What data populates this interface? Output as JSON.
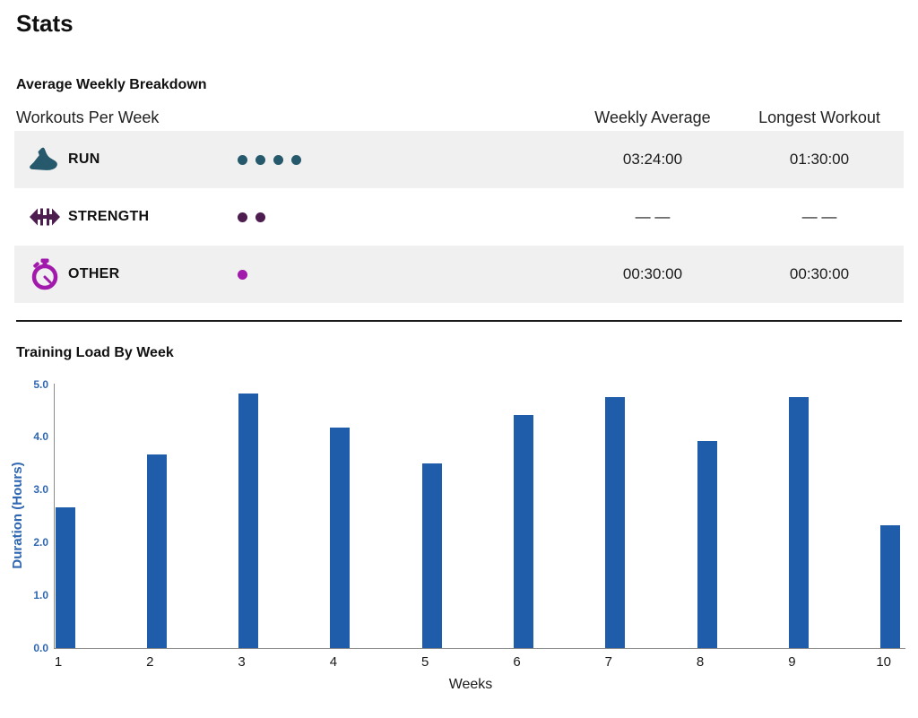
{
  "page": {
    "title": "Stats"
  },
  "breakdown": {
    "heading": "Average Weekly Breakdown",
    "table": {
      "col1_header": "Workouts Per Week",
      "col2_header": "Weekly Average",
      "col3_header": "Longest Workout",
      "rows": [
        {
          "icon": "run-shoe-icon",
          "label": "RUN",
          "workouts_per_week_dots": 4,
          "color": "#26596c",
          "weekly_average": "03:24:00",
          "longest_workout": "01:30:00"
        },
        {
          "icon": "dumbbell-icon",
          "label": "STRENGTH",
          "workouts_per_week_dots": 2,
          "color": "#4d1d50",
          "weekly_average": "— —",
          "longest_workout": "— —"
        },
        {
          "icon": "stopwatch-icon",
          "label": "OTHER",
          "workouts_per_week_dots": 1,
          "color": "#a21aab",
          "weekly_average": "00:30:00",
          "longest_workout": "00:30:00"
        }
      ]
    }
  },
  "training_load": {
    "heading": "Training Load By Week"
  },
  "chart_data": {
    "type": "bar",
    "title": "Training Load By Week",
    "categories": [
      "1",
      "2",
      "3",
      "4",
      "5",
      "6",
      "7",
      "8",
      "9",
      "10"
    ],
    "values": [
      2.67,
      3.67,
      4.83,
      4.17,
      3.5,
      4.42,
      4.75,
      3.92,
      4.75,
      2.33
    ],
    "xlabel": "Weeks",
    "ylabel": "Duration (Hours)",
    "ylim": [
      0,
      5
    ],
    "yticks": [
      0.0,
      1.0,
      2.0,
      3.0,
      4.0,
      5.0
    ],
    "grid": false,
    "legend": false,
    "bar_color": "#1f5ca9",
    "axis_text_color": "#2f67b1",
    "axis_line_color": "#8c8c8c"
  }
}
